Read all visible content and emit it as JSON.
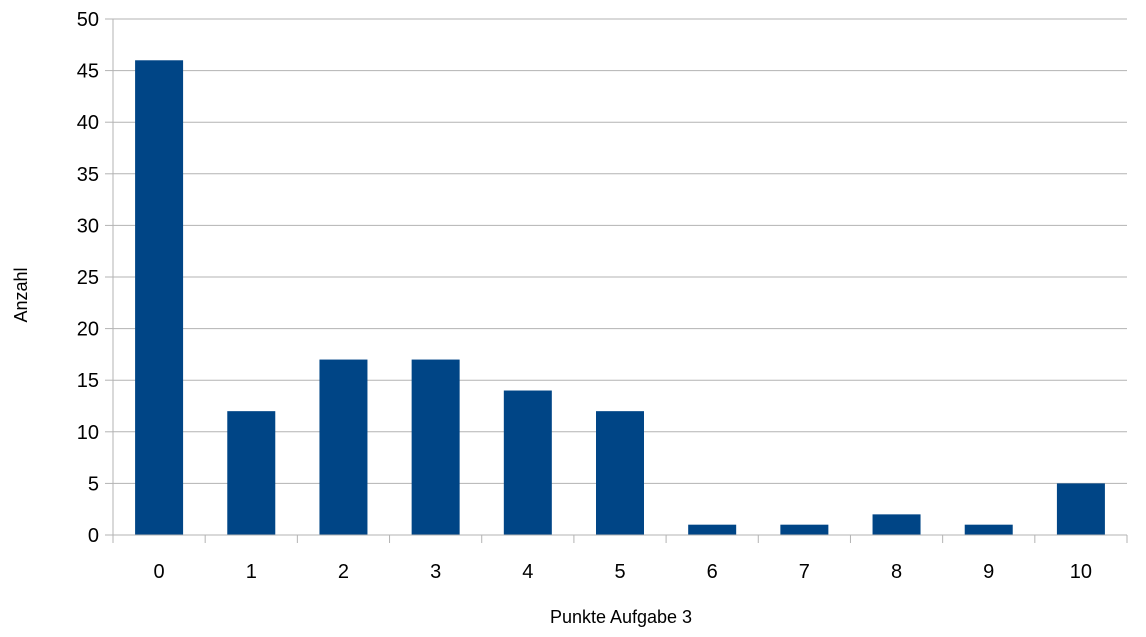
{
  "chart_data": {
    "type": "bar",
    "title": "",
    "xlabel": "Punkte Aufgabe 3",
    "ylabel": "Anzahl",
    "categories": [
      "0",
      "1",
      "2",
      "3",
      "4",
      "5",
      "6",
      "7",
      "8",
      "9",
      "10"
    ],
    "values": [
      46,
      12,
      17,
      17,
      14,
      12,
      1,
      1,
      2,
      1,
      5
    ],
    "ylim": [
      0,
      50
    ],
    "yticks": [
      0,
      5,
      10,
      15,
      20,
      25,
      30,
      35,
      40,
      45,
      50
    ],
    "grid": true,
    "legend": "none",
    "bar_color": "#004586",
    "grid_color": "#b3b3b3"
  }
}
